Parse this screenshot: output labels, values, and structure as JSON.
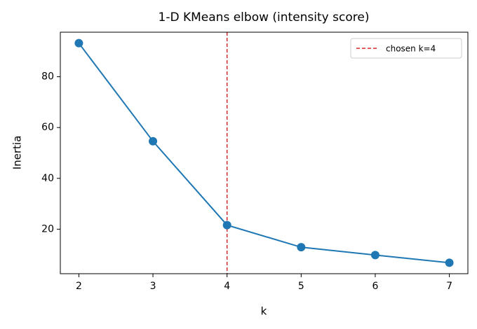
{
  "chart_data": {
    "type": "line",
    "title": "1-D KMeans elbow (intensity score)",
    "x_label": "k",
    "y_label": "Inertia",
    "x": [
      2,
      3,
      4,
      5,
      6,
      7
    ],
    "series": [
      {
        "color": "#1f77b4",
        "values": [
          93.2,
          54.6,
          21.6,
          12.9,
          9.8,
          6.8
        ]
      }
    ],
    "xlim": [
      1.75,
      7.25
    ],
    "xticks": [
      2,
      3,
      4,
      5,
      6,
      7
    ],
    "ylim": [
      2.48,
      97.52
    ],
    "yticks": [
      20,
      40,
      60,
      80
    ],
    "vline": {
      "x": 4,
      "label": "chosen k=4",
      "color": "#d62728"
    },
    "legend": "upper right",
    "grid": false
  }
}
